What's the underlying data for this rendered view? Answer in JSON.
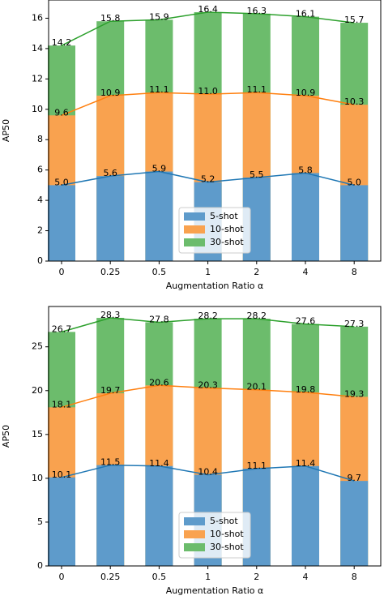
{
  "chart_data": [
    {
      "type": "bar",
      "xlabel": "Augmentation Ratio α",
      "ylabel": "AP50",
      "categories": [
        "0",
        "0.25",
        "0.5",
        "1",
        "2",
        "4",
        "8"
      ],
      "series": [
        {
          "name": "5-shot",
          "color": "#1f77b4",
          "values": [
            5.0,
            5.6,
            5.9,
            5.2,
            5.5,
            5.8,
            5.0
          ],
          "value_labels": [
            "5.0",
            "5.6",
            "5.9",
            "5.2",
            "5.5",
            "5.8",
            "5.0"
          ]
        },
        {
          "name": "10-shot",
          "color": "#ff7f0e",
          "values": [
            9.6,
            10.9,
            11.1,
            11.0,
            11.1,
            10.9,
            10.3
          ],
          "value_labels": [
            "9.6",
            "10.9",
            "11.1",
            "11.0",
            "11.1",
            "10.9",
            "10.3"
          ]
        },
        {
          "name": "30-shot",
          "color": "#2ca02c",
          "values": [
            14.2,
            15.8,
            15.9,
            16.4,
            16.3,
            16.1,
            15.7
          ],
          "value_labels": [
            "14.2",
            "15.8",
            "15.9",
            "16.4",
            "16.3",
            "16.1",
            "15.7"
          ]
        }
      ],
      "ylim": [
        0,
        17.2
      ],
      "yticks": [
        0,
        2,
        4,
        6,
        8,
        10,
        12,
        14,
        16
      ],
      "legend": "lower center"
    },
    {
      "type": "bar",
      "xlabel": "Augmentation Ratio α",
      "ylabel": "AP50",
      "categories": [
        "0",
        "0.25",
        "0.5",
        "1",
        "2",
        "4",
        "8"
      ],
      "series": [
        {
          "name": "5-shot",
          "color": "#1f77b4",
          "values": [
            10.1,
            11.5,
            11.4,
            10.4,
            11.1,
            11.4,
            9.7
          ]
        },
        {
          "name": "10-shot",
          "color": "#ff7f0e",
          "values": [
            18.1,
            19.7,
            20.6,
            20.3,
            20.1,
            19.8,
            19.3
          ]
        },
        {
          "name": "30-shot",
          "color": "#2ca02c",
          "values": [
            26.7,
            28.3,
            27.8,
            28.2,
            28.2,
            27.6,
            27.3
          ]
        }
      ],
      "ylim": [
        0,
        29.6
      ],
      "yticks": [
        0,
        5,
        10,
        15,
        20,
        25
      ],
      "legend": "lower center"
    }
  ]
}
